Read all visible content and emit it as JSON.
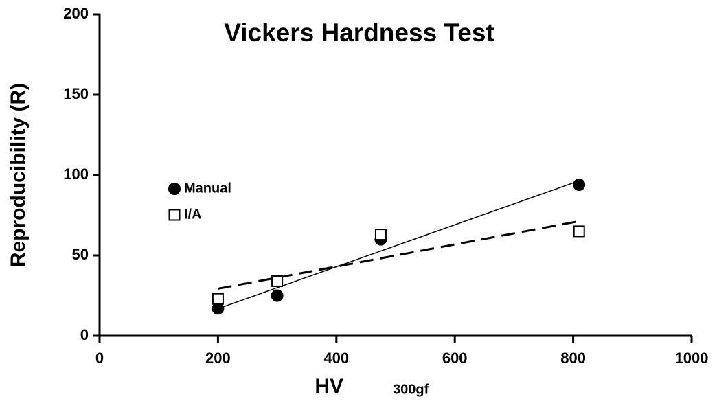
{
  "chart_data": {
    "type": "scatter",
    "title": "Vickers Hardness Test",
    "x_label": "HV",
    "x_label_sub": "300gf",
    "y_label": "Reproducibility (R)",
    "series": [
      {
        "name": "Manual",
        "color": "#000000",
        "marker": "circle",
        "trendline": "solid",
        "x": [
          200,
          300,
          475,
          810
        ],
        "values": [
          17,
          25,
          60,
          94
        ]
      },
      {
        "name": "I/A",
        "color": "#ffffff",
        "marker": "square",
        "trendline": "dashed",
        "x": [
          200,
          300,
          475,
          810
        ],
        "values": [
          23,
          34,
          63,
          65
        ]
      }
    ],
    "xlim": [
      0,
      1000
    ],
    "xticks": [
      0,
      200,
      400,
      600,
      800,
      1000
    ],
    "ylim": [
      0,
      200
    ],
    "yticks": [
      0,
      50,
      100,
      150,
      200
    ]
  }
}
